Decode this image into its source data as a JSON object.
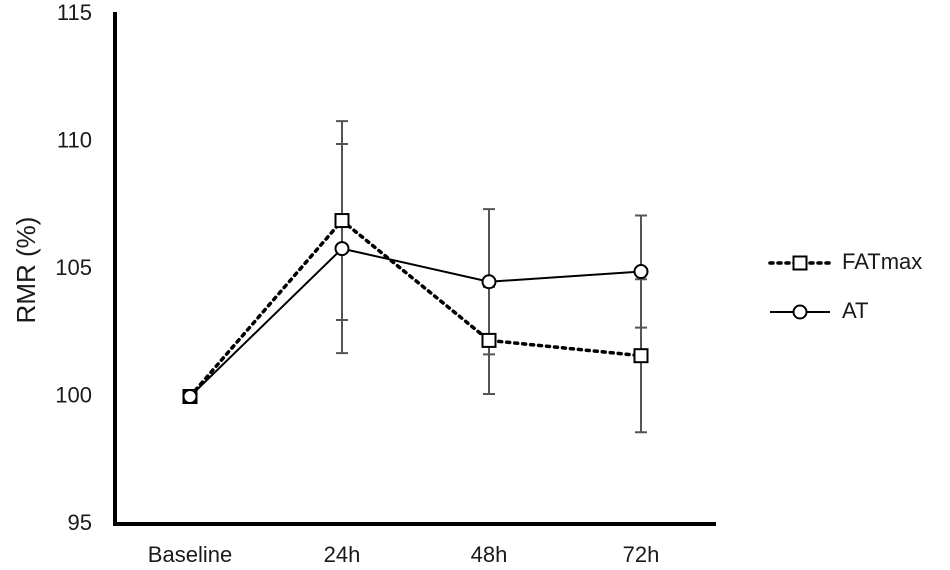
{
  "chart_data": {
    "type": "line",
    "y_label": "RMR (%)",
    "categories": [
      "Baseline",
      "24h",
      "48h",
      "72h"
    ],
    "ylim": [
      95,
      115
    ],
    "yticks": [
      95,
      100,
      105,
      110,
      115
    ],
    "series": [
      {
        "name": "FATmax",
        "color": "#000000",
        "dash": "dotted",
        "marker": "square",
        "values": [
          100,
          106.9,
          102.2,
          101.6
        ],
        "errors": [
          null,
          3.9,
          2.1,
          3.0
        ]
      },
      {
        "name": "AT",
        "color": "#000000",
        "dash": "solid",
        "marker": "circle",
        "values": [
          100,
          105.8,
          104.5,
          104.9
        ],
        "errors": [
          null,
          4.1,
          2.85,
          2.2
        ]
      }
    ]
  }
}
